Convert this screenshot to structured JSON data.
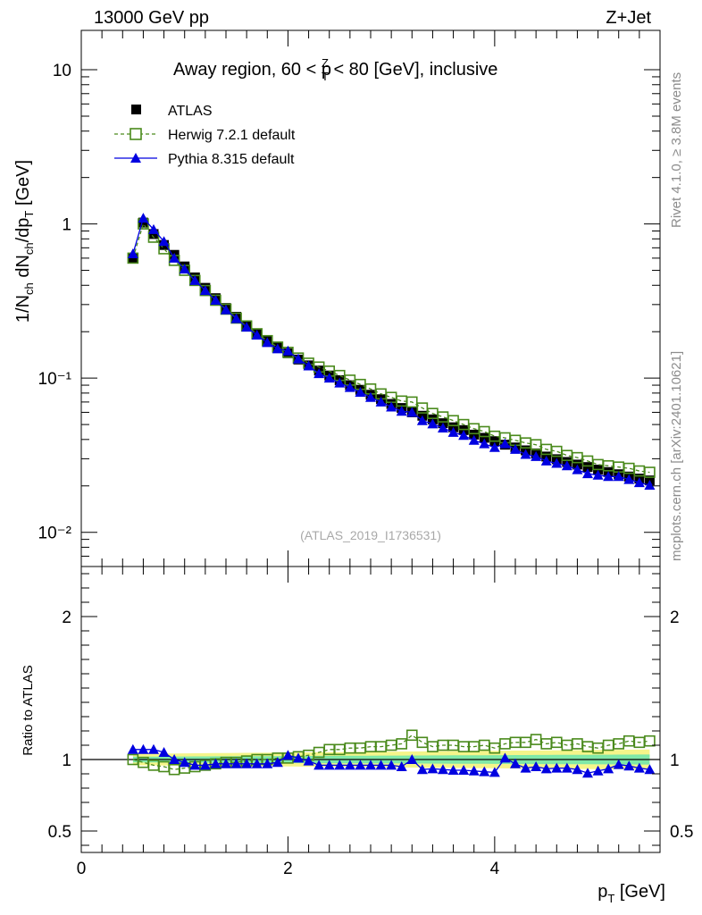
{
  "header": {
    "energy": "13000 GeV pp",
    "process": "Z+Jet",
    "title_prefix": "Away region, 60 < p",
    "title_sup": "Z",
    "title_sub": "T",
    "title_suffix": " < 80 [GeV], inclusive",
    "analysis_id": "(ATLAS_2019_I1736531)"
  },
  "side_labels": {
    "rivet": "Rivet 4.1.0, ≥ 3.8M events",
    "mcplots": "mcplots.cern.ch [arXiv:2401.10621]"
  },
  "chart_data": {
    "type": "scatter",
    "x": [
      0.5,
      0.6,
      0.7,
      0.8,
      0.9,
      1.0,
      1.1,
      1.2,
      1.3,
      1.4,
      1.5,
      1.6,
      1.7,
      1.8,
      1.9,
      2.0,
      2.1,
      2.2,
      2.3,
      2.4,
      2.5,
      2.6,
      2.7,
      2.8,
      2.9,
      3.0,
      3.1,
      3.2,
      3.3,
      3.4,
      3.5,
      3.6,
      3.7,
      3.8,
      3.9,
      4.0,
      4.1,
      4.2,
      4.3,
      4.4,
      4.5,
      4.6,
      4.7,
      4.8,
      4.9,
      5.0,
      5.1,
      5.2,
      5.3,
      5.4,
      5.5
    ],
    "series": [
      {
        "name": "ATLAS",
        "marker": "filled-square",
        "color": "#000000",
        "values": [
          0.6,
          1.02,
          0.86,
          0.73,
          0.63,
          0.53,
          0.45,
          0.385,
          0.33,
          0.285,
          0.25,
          0.22,
          0.195,
          0.175,
          0.158,
          0.145,
          0.132,
          0.121,
          0.112,
          0.104,
          0.097,
          0.09,
          0.084,
          0.078,
          0.073,
          0.068,
          0.064,
          0.06,
          0.057,
          0.054,
          0.051,
          0.048,
          0.046,
          0.043,
          0.041,
          0.039,
          0.037,
          0.0355,
          0.034,
          0.0325,
          0.031,
          0.0298,
          0.0286,
          0.0275,
          0.0265,
          0.0255,
          0.0246,
          0.0238,
          0.023,
          0.0223,
          0.0217
        ]
      },
      {
        "name": "Herwig 7.2.1 default",
        "marker": "open-square",
        "color": "#4a8a1c",
        "style": "dashed",
        "values": [
          0.6,
          1.0,
          0.82,
          0.69,
          0.58,
          0.5,
          0.43,
          0.37,
          0.32,
          0.28,
          0.245,
          0.218,
          0.194,
          0.175,
          0.159,
          0.147,
          0.135,
          0.125,
          0.118,
          0.111,
          0.104,
          0.097,
          0.091,
          0.085,
          0.079,
          0.075,
          0.071,
          0.07,
          0.064,
          0.059,
          0.056,
          0.053,
          0.05,
          0.047,
          0.045,
          0.042,
          0.041,
          0.0395,
          0.038,
          0.037,
          0.0345,
          0.0335,
          0.0315,
          0.0305,
          0.029,
          0.0275,
          0.027,
          0.0265,
          0.026,
          0.025,
          0.0245
        ]
      },
      {
        "name": "Pythia 8.315 default",
        "marker": "filled-triangle",
        "color": "#0000e0",
        "style": "solid",
        "values": [
          0.64,
          1.09,
          0.92,
          0.77,
          0.6,
          0.51,
          0.43,
          0.37,
          0.32,
          0.277,
          0.243,
          0.214,
          0.19,
          0.17,
          0.155,
          0.15,
          0.133,
          0.12,
          0.107,
          0.1,
          0.093,
          0.087,
          0.081,
          0.075,
          0.07,
          0.065,
          0.061,
          0.06,
          0.053,
          0.0505,
          0.0475,
          0.0445,
          0.0425,
          0.0395,
          0.0375,
          0.0355,
          0.0375,
          0.0345,
          0.032,
          0.031,
          0.029,
          0.028,
          0.027,
          0.0255,
          0.024,
          0.0235,
          0.023,
          0.023,
          0.022,
          0.021,
          0.0202
        ]
      }
    ],
    "main_panel": {
      "ylabel": "1/N_ch dN_ch/dp_T [GeV]",
      "yscale": "log",
      "ylim": [
        0.006,
        18
      ],
      "ytick_labels": [
        "10",
        "1",
        "10⁻¹",
        "10⁻²"
      ],
      "legend_position": "top-left"
    },
    "ratio_panel": {
      "ylabel": "Ratio to ATLAS",
      "ylim": [
        0.35,
        2.35
      ],
      "ytick_labels": [
        "2",
        "1",
        "0.5"
      ],
      "band_color_inner": "#7fe8a8",
      "band_color_outer": "#f5f58a",
      "herwig_ratio": [
        1.0,
        0.98,
        0.96,
        0.95,
        0.93,
        0.94,
        0.95,
        0.96,
        0.97,
        0.98,
        0.98,
        0.99,
        1.0,
        1.0,
        1.01,
        1.01,
        1.02,
        1.03,
        1.05,
        1.07,
        1.07,
        1.08,
        1.08,
        1.09,
        1.09,
        1.1,
        1.11,
        1.17,
        1.12,
        1.09,
        1.1,
        1.1,
        1.09,
        1.09,
        1.1,
        1.08,
        1.11,
        1.12,
        1.12,
        1.14,
        1.11,
        1.12,
        1.1,
        1.11,
        1.09,
        1.08,
        1.1,
        1.11,
        1.13,
        1.12,
        1.13
      ],
      "pythia_ratio": [
        1.07,
        1.07,
        1.07,
        1.05,
        1.0,
        0.98,
        0.96,
        0.96,
        0.97,
        0.97,
        0.97,
        0.97,
        0.97,
        0.97,
        0.98,
        1.03,
        1.01,
        0.99,
        0.96,
        0.96,
        0.96,
        0.96,
        0.96,
        0.96,
        0.96,
        0.96,
        0.95,
        1.0,
        0.93,
        0.935,
        0.93,
        0.925,
        0.925,
        0.92,
        0.915,
        0.91,
        1.01,
        0.97,
        0.94,
        0.95,
        0.935,
        0.94,
        0.94,
        0.93,
        0.905,
        0.92,
        0.935,
        0.965,
        0.955,
        0.94,
        0.93
      ]
    },
    "xaxis": {
      "label": "p_T [GeV]",
      "xlim": [
        0,
        5.6
      ],
      "tick_labels": [
        "0",
        "2",
        "4"
      ]
    }
  }
}
